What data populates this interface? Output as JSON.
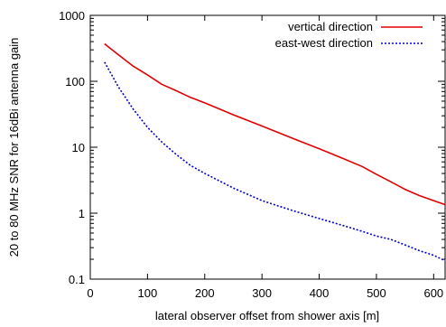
{
  "chart_data": {
    "type": "line",
    "xlabel": "lateral observer offset from shower axis [m]",
    "ylabel": "20 to 80 MHz SNR for 16dBi antenna gain",
    "xlim": [
      0,
      620
    ],
    "ylim": [
      0.1,
      1000
    ],
    "y_scale": "log",
    "grid": false,
    "legend_position": "top-right",
    "x_ticks": [
      {
        "value": 0,
        "label": "0"
      },
      {
        "value": 100,
        "label": "100"
      },
      {
        "value": 200,
        "label": "200"
      },
      {
        "value": 300,
        "label": "300"
      },
      {
        "value": 400,
        "label": "400"
      },
      {
        "value": 500,
        "label": "500"
      },
      {
        "value": 600,
        "label": "600"
      }
    ],
    "y_ticks": [
      {
        "value": 0.1,
        "label": "0.1"
      },
      {
        "value": 1,
        "label": "1"
      },
      {
        "value": 10,
        "label": "10"
      },
      {
        "value": 100,
        "label": "100"
      },
      {
        "value": 1000,
        "label": "1000"
      }
    ],
    "series": [
      {
        "name": "vertical direction",
        "color": "#e00000",
        "style": "solid",
        "x": [
          25,
          50,
          75,
          100,
          125,
          150,
          175,
          200,
          250,
          300,
          350,
          400,
          450,
          475,
          500,
          525,
          550,
          575,
          600,
          620
        ],
        "y": [
          370,
          250,
          170,
          125,
          90,
          72,
          57,
          47,
          31,
          21,
          14,
          9.5,
          6.3,
          5.1,
          3.9,
          3.0,
          2.3,
          1.85,
          1.55,
          1.35
        ]
      },
      {
        "name": "east-west direction",
        "color": "#0000cc",
        "style": "dotted",
        "x": [
          25,
          50,
          75,
          100,
          125,
          150,
          175,
          200,
          250,
          300,
          350,
          400,
          450,
          475,
          500,
          525,
          550,
          575,
          600,
          620
        ],
        "y": [
          195,
          80,
          38,
          20,
          12,
          7.8,
          5.3,
          4.0,
          2.4,
          1.55,
          1.12,
          0.83,
          0.62,
          0.53,
          0.45,
          0.4,
          0.33,
          0.27,
          0.23,
          0.19
        ]
      }
    ]
  }
}
